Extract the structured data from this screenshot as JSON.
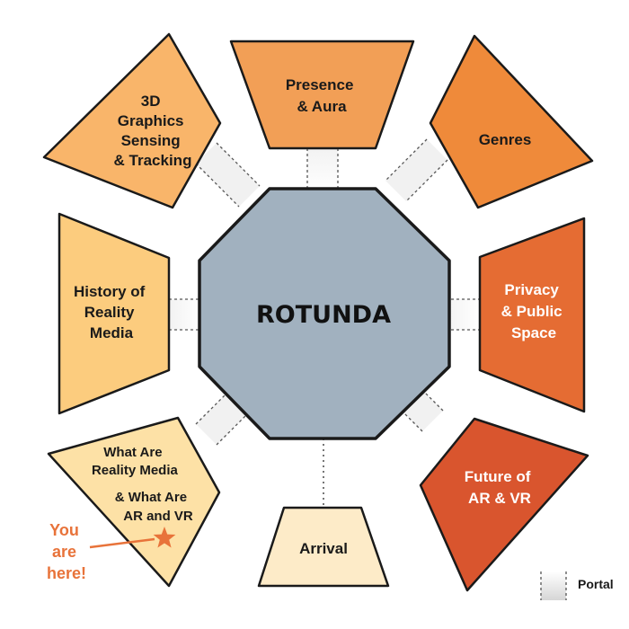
{
  "center": {
    "label": "ROTUNDA",
    "color": "#a1b1bf"
  },
  "rooms": {
    "graphics": {
      "lines": [
        "3D",
        "Graphics",
        "Sensing",
        "& Tracking"
      ],
      "color": "#f9b56a"
    },
    "presence": {
      "lines": [
        "Presence",
        "& Aura"
      ],
      "color": "#f29f56"
    },
    "genres": {
      "lines": [
        "Genres"
      ],
      "color": "#ef8a3a"
    },
    "history": {
      "lines": [
        "History of",
        "Reality",
        "Media"
      ],
      "color": "#fccc7e"
    },
    "privacy": {
      "lines": [
        "Privacy",
        "& Public",
        "Space"
      ],
      "color": "#e56c33"
    },
    "whatare": {
      "lines": [
        "What Are",
        "Reality Media",
        "&  What Are",
        "AR and VR"
      ],
      "color": "#fde1a6"
    },
    "arrival": {
      "lines": [
        "Arrival"
      ],
      "color": "#fdebc8"
    },
    "future": {
      "lines": [
        "Future of",
        "AR & VR"
      ],
      "color": "#d9552e"
    }
  },
  "you_are_here": {
    "lines": [
      "You",
      "are",
      "here!"
    ],
    "color": "#e8733a"
  },
  "legend": {
    "label": "Portal"
  }
}
